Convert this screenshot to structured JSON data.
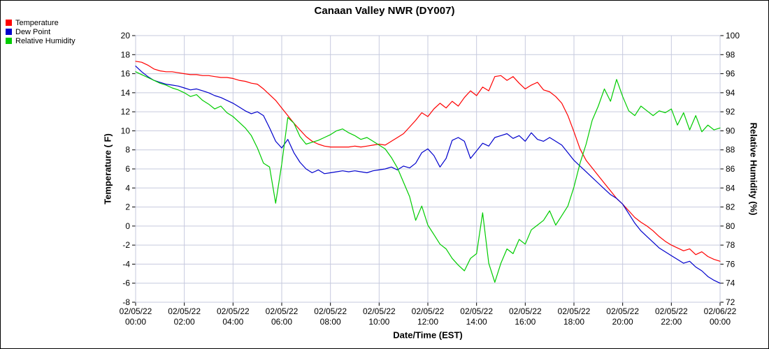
{
  "chart_data": {
    "type": "line",
    "title": "Canaan Valley NWR (DY007)",
    "xlabel": "Date/Time (EST)",
    "ylabel_left": "Temperature ( F)",
    "ylabel_right": "Relative Humidity (%)",
    "grid": true,
    "legend_position": "top-left",
    "y_left": {
      "min": -8,
      "max": 20,
      "tick_step": 2
    },
    "y_right": {
      "min": 72,
      "max": 100,
      "tick_step": 2
    },
    "x_ticks": [
      {
        "date": "02/05/22",
        "time": "00:00"
      },
      {
        "date": "02/05/22",
        "time": "02:00"
      },
      {
        "date": "02/05/22",
        "time": "04:00"
      },
      {
        "date": "02/05/22",
        "time": "06:00"
      },
      {
        "date": "02/05/22",
        "time": "08:00"
      },
      {
        "date": "02/05/22",
        "time": "10:00"
      },
      {
        "date": "02/05/22",
        "time": "12:00"
      },
      {
        "date": "02/05/22",
        "time": "14:00"
      },
      {
        "date": "02/05/22",
        "time": "16:00"
      },
      {
        "date": "02/05/22",
        "time": "18:00"
      },
      {
        "date": "02/05/22",
        "time": "20:00"
      },
      {
        "date": "02/05/22",
        "time": "22:00"
      },
      {
        "date": "02/06/22",
        "time": "00:00"
      }
    ],
    "x_unit": "hours since 02/05/22 00:00 EST",
    "x": [
      0,
      0.25,
      0.5,
      0.75,
      1,
      1.25,
      1.5,
      1.75,
      2,
      2.25,
      2.5,
      2.75,
      3,
      3.25,
      3.5,
      3.75,
      4,
      4.25,
      4.5,
      4.75,
      5,
      5.25,
      5.5,
      5.75,
      6,
      6.25,
      6.5,
      6.75,
      7,
      7.25,
      7.5,
      7.75,
      8,
      8.25,
      8.5,
      8.75,
      9,
      9.25,
      9.5,
      9.75,
      10,
      10.25,
      10.5,
      10.75,
      11,
      11.25,
      11.5,
      11.75,
      12,
      12.25,
      12.5,
      12.75,
      13,
      13.25,
      13.5,
      13.75,
      14,
      14.25,
      14.5,
      14.75,
      15,
      15.25,
      15.5,
      15.75,
      16,
      16.25,
      16.5,
      16.75,
      17,
      17.25,
      17.5,
      17.75,
      18,
      18.25,
      18.5,
      18.75,
      19,
      19.25,
      19.5,
      19.75,
      20,
      20.25,
      20.5,
      20.75,
      21,
      21.25,
      21.5,
      21.75,
      22,
      22.25,
      22.5,
      22.75,
      23,
      23.25,
      23.5,
      23.75,
      24
    ],
    "series": [
      {
        "name": "Temperature",
        "axis": "left",
        "color": "#ff0000",
        "values": [
          17.3,
          17.2,
          16.9,
          16.5,
          16.3,
          16.2,
          16.2,
          16.1,
          16,
          15.9,
          15.9,
          15.8,
          15.8,
          15.7,
          15.6,
          15.6,
          15.5,
          15.3,
          15.2,
          15,
          14.9,
          14.4,
          13.8,
          13.2,
          12.4,
          11.6,
          10.8,
          10.1,
          9.4,
          8.9,
          8.6,
          8.4,
          8.3,
          8.3,
          8.3,
          8.3,
          8.4,
          8.3,
          8.4,
          8.5,
          8.6,
          8.5,
          8.9,
          9.3,
          9.7,
          10.4,
          11.1,
          11.9,
          11.5,
          12.3,
          12.9,
          12.4,
          13.1,
          12.6,
          13.5,
          14.2,
          13.7,
          14.6,
          14.2,
          15.7,
          15.8,
          15.3,
          15.7,
          15,
          14.4,
          14.8,
          15.1,
          14.3,
          14.1,
          13.6,
          12.9,
          11.6,
          9.9,
          8.1,
          6.9,
          6.1,
          5.3,
          4.5,
          3.7,
          2.9,
          2.3,
          1.6,
          0.9,
          0.4,
          0,
          -0.5,
          -1.1,
          -1.6,
          -2,
          -2.3,
          -2.6,
          -2.4,
          -3,
          -2.7,
          -3.2,
          -3.5,
          -3.7
        ]
      },
      {
        "name": "Dew Point",
        "axis": "left",
        "color": "#0000cc",
        "values": [
          16.8,
          16.2,
          15.7,
          15.3,
          15.1,
          14.9,
          14.8,
          14.7,
          14.5,
          14.3,
          14.4,
          14.2,
          14,
          13.7,
          13.5,
          13.2,
          12.9,
          12.5,
          12.1,
          11.8,
          12,
          11.6,
          10.3,
          8.9,
          8.2,
          9.1,
          7.7,
          6.7,
          6,
          5.6,
          5.9,
          5.5,
          5.6,
          5.7,
          5.8,
          5.7,
          5.8,
          5.7,
          5.6,
          5.8,
          5.9,
          6,
          6.2,
          5.9,
          6.3,
          6.1,
          6.6,
          7.7,
          8.1,
          7.4,
          6.2,
          7.1,
          9,
          9.3,
          8.9,
          7.1,
          7.9,
          8.7,
          8.4,
          9.3,
          9.5,
          9.7,
          9.2,
          9.5,
          8.9,
          9.8,
          9.1,
          8.9,
          9.3,
          8.9,
          8.5,
          7.7,
          6.9,
          6.3,
          5.7,
          5.1,
          4.5,
          3.9,
          3.3,
          2.9,
          2.3,
          1.3,
          0.3,
          -0.5,
          -1.1,
          -1.7,
          -2.3,
          -2.7,
          -3.1,
          -3.5,
          -3.9,
          -3.7,
          -4.3,
          -4.7,
          -5.3,
          -5.7,
          -6
        ]
      },
      {
        "name": "Relative Humidity",
        "axis": "right",
        "color": "#00cc00",
        "values": [
          96.2,
          95.9,
          95.6,
          95.3,
          95,
          94.8,
          94.5,
          94.3,
          94,
          93.6,
          93.8,
          93.2,
          92.8,
          92.3,
          92.6,
          91.9,
          91.5,
          90.9,
          90.3,
          89.5,
          88.2,
          86.6,
          86.2,
          82.4,
          86.5,
          91.4,
          90.8,
          89.4,
          88.6,
          88.8,
          89,
          89.3,
          89.6,
          90,
          90.2,
          89.8,
          89.5,
          89.1,
          89.3,
          88.9,
          88.5,
          88.1,
          87.2,
          86.1,
          84.6,
          83.1,
          80.6,
          82.1,
          80.1,
          79.1,
          78.1,
          77.6,
          76.6,
          75.9,
          75.3,
          76.6,
          77.1,
          81.4,
          76.1,
          74.1,
          76.1,
          77.6,
          77.1,
          78.6,
          78.1,
          79.6,
          80.1,
          80.6,
          81.6,
          80.1,
          81.1,
          82.1,
          84.1,
          86.6,
          88.6,
          91.1,
          92.6,
          94.4,
          93.1,
          95.4,
          93.6,
          92.1,
          91.6,
          92.6,
          92.1,
          91.6,
          92.1,
          91.9,
          92.3,
          90.6,
          91.9,
          90.1,
          91.6,
          89.9,
          90.6,
          90.1,
          90.3
        ]
      }
    ]
  }
}
